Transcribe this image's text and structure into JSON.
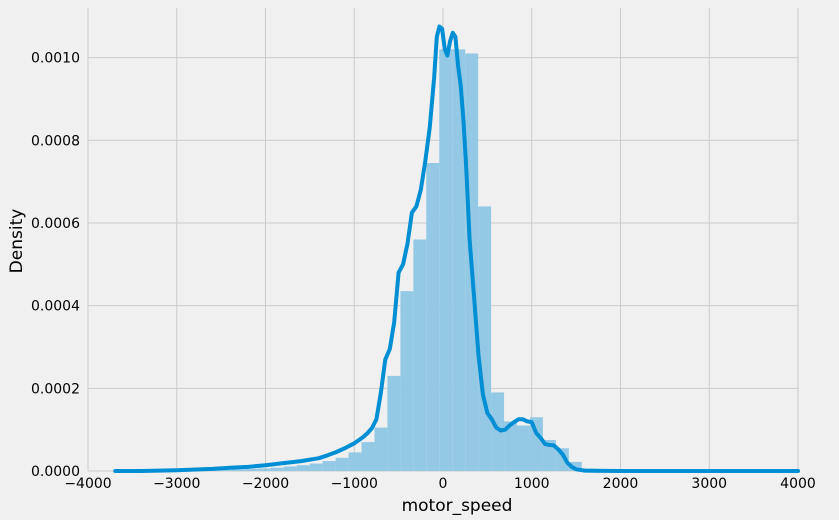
{
  "chart_data": {
    "type": "histogram",
    "title": "",
    "xlabel": "motor_speed",
    "ylabel": "Density",
    "xlim": [
      -4000,
      4000
    ],
    "ylim": [
      0,
      0.00112
    ],
    "grid": true,
    "xticks": [
      -4000,
      -3000,
      -2000,
      -1000,
      0,
      1000,
      2000,
      3000,
      4000
    ],
    "yticks": [
      0.0,
      0.0002,
      0.0004,
      0.0006,
      0.0008,
      0.001
    ],
    "xtick_labels": [
      "−4000",
      "−3000",
      "−2000",
      "−1000",
      "0",
      "1000",
      "2000",
      "3000",
      "4000"
    ],
    "ytick_labels": [
      "0.0000",
      "0.0002",
      "0.0004",
      "0.0006",
      "0.0008",
      "0.0010"
    ],
    "colors": {
      "hist": "#93c9e5",
      "kde": "#008fd5",
      "grid": "#cbcbcb",
      "background": "#f0f0f0"
    },
    "histogram": {
      "bin_edges": [
        -3692,
        -3546,
        -3400,
        -3254,
        -3108,
        -2962,
        -2816,
        -2670,
        -2524,
        -2378,
        -2232,
        -2086,
        -1940,
        -1794,
        -1648,
        -1502,
        -1356,
        -1210,
        -1064,
        -918,
        -772,
        -626,
        -480,
        -334,
        -188,
        -42,
        104,
        250,
        396,
        542,
        688,
        834,
        980,
        1126,
        1272,
        1418,
        1564,
        1710,
        1856,
        2002,
        2148,
        2294,
        2440,
        2586,
        2732,
        2878,
        3024,
        3170,
        3316,
        3462,
        3608,
        3754,
        3900,
        4000
      ],
      "density": [
        5e-07,
        5e-07,
        5e-07,
        5e-07,
        1e-06,
        1e-06,
        1.5e-06,
        2e-06,
        3e-06,
        4e-06,
        5e-06,
        6e-06,
        8e-06,
        1.1e-05,
        1.4e-05,
        1.8e-05,
        2.4e-05,
        3.2e-05,
        4.5e-05,
        7e-05,
        0.000105,
        0.00023,
        0.000435,
        0.00056,
        0.000745,
        0.00102,
        0.00102,
        0.00101,
        0.00064,
        0.00019,
        0.00012,
        0.00011,
        0.00013,
        7.5e-05,
        5.5e-05,
        2.2e-05,
        6e-06,
        2e-06,
        1e-06,
        5e-07,
        5e-07,
        5e-07,
        5e-07,
        5e-07,
        5e-07,
        5e-07,
        5e-07,
        5e-07,
        5e-07,
        5e-07,
        5e-07,
        5e-07,
        5e-07
      ]
    },
    "kde": {
      "x": [
        -3692,
        -3400,
        -3000,
        -2600,
        -2400,
        -2200,
        -2000,
        -1800,
        -1600,
        -1400,
        -1300,
        -1200,
        -1100,
        -1000,
        -900,
        -850,
        -800,
        -750,
        -700,
        -650,
        -600,
        -550,
        -500,
        -450,
        -400,
        -350,
        -300,
        -250,
        -200,
        -150,
        -100,
        -70,
        -40,
        -10,
        20,
        50,
        80,
        110,
        140,
        170,
        200,
        230,
        260,
        300,
        350,
        400,
        450,
        500,
        550,
        600,
        650,
        700,
        750,
        800,
        850,
        900,
        950,
        1000,
        1050,
        1100,
        1150,
        1200,
        1250,
        1300,
        1350,
        1400,
        1450,
        1500,
        1600,
        1700,
        2000,
        2500,
        3000,
        3500,
        4000
      ],
      "y": [
        0.0,
        0.0,
        2e-06,
        5e-06,
        8e-06,
        1e-05,
        1.4e-05,
        1.9e-05,
        2.4e-05,
        3.1e-05,
        3.8e-05,
        4.6e-05,
        5.6e-05,
        6.7e-05,
        8.2e-05,
        9.2e-05,
        0.000104,
        0.000125,
        0.00019,
        0.00027,
        0.000295,
        0.00036,
        0.00048,
        0.0005,
        0.00055,
        0.000625,
        0.00064,
        0.00068,
        0.00075,
        0.00083,
        0.00095,
        0.00105,
        0.001075,
        0.00107,
        0.00102,
        0.001005,
        0.00104,
        0.00106,
        0.00105,
        0.00098,
        0.00093,
        0.00085,
        0.00074,
        0.00056,
        0.00042,
        0.00028,
        0.000185,
        0.00014,
        0.000125,
        0.000105,
        9.8e-05,
        0.0001,
        0.00011,
        0.000118,
        0.000125,
        0.000125,
        0.00012,
        0.000118,
        9.2e-05,
        8e-05,
        6.5e-05,
        6.3e-05,
        6.2e-05,
        5.2e-05,
        4e-05,
        2e-05,
        1e-05,
        4e-06,
        1e-06,
        5e-07,
        0.0,
        0.0,
        0.0,
        0.0,
        0.0
      ]
    }
  }
}
